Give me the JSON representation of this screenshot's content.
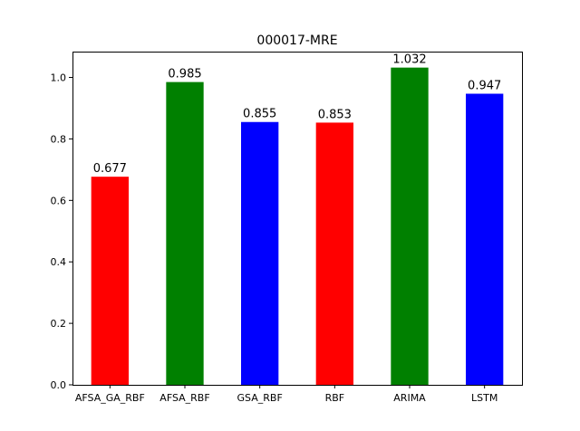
{
  "chart_data": {
    "type": "bar",
    "title": "000017-MRE",
    "xlabel": "",
    "ylabel": "",
    "categories": [
      "AFSA_GA_RBF",
      "AFSA_RBF",
      "GSA_RBF",
      "RBF",
      "ARIMA",
      "LSTM"
    ],
    "values": [
      0.677,
      0.985,
      0.855,
      0.853,
      1.032,
      0.947
    ],
    "value_labels": [
      "0.677",
      "0.985",
      "0.855",
      "0.853",
      "1.032",
      "0.947"
    ],
    "colors": [
      "#ff0000",
      "#008000",
      "#0000ff",
      "#ff0000",
      "#008000",
      "#0000ff"
    ],
    "ylim": [
      0,
      1.084
    ],
    "yticks": [
      0.0,
      0.2,
      0.4,
      0.6,
      0.8,
      1.0
    ],
    "ytick_labels": [
      "0.0",
      "0.2",
      "0.4",
      "0.6",
      "0.8",
      "1.0"
    ],
    "grid": false,
    "legend": "none"
  }
}
